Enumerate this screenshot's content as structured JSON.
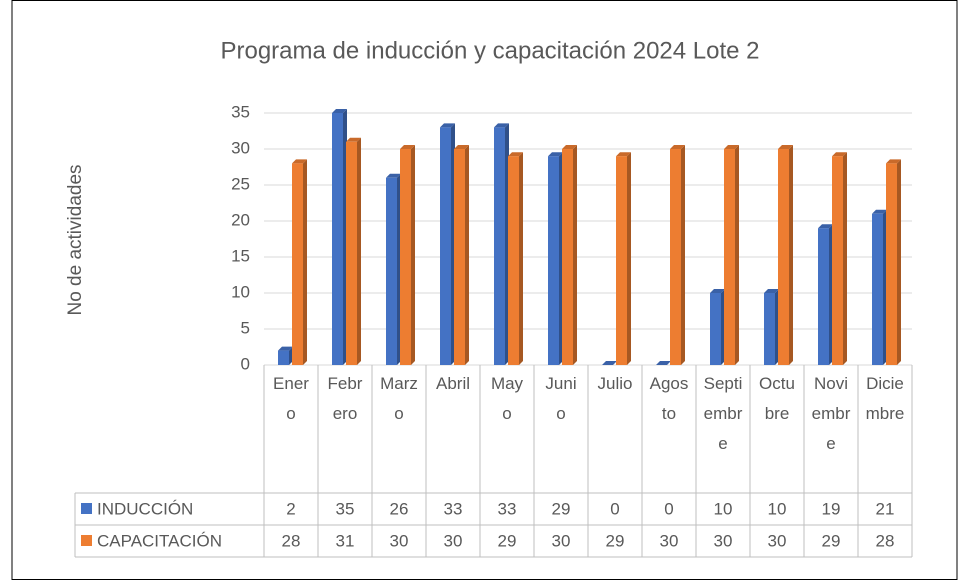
{
  "chart_data": {
    "type": "bar",
    "title": "Programa de inducción y capacitación 2024 Lote 2",
    "y_label": "No de actividades",
    "categories": [
      "Enero",
      "Febrero",
      "Marzo",
      "Abril",
      "Mayo",
      "Junio",
      "Julio",
      "Agosto",
      "Septiembre",
      "Octubre",
      "Noviembre",
      "Diciembre"
    ],
    "series": [
      {
        "name": "INDUCCIÓN",
        "color": "#4472c4",
        "values": [
          2,
          35,
          26,
          33,
          33,
          29,
          0,
          0,
          10,
          10,
          19,
          21
        ]
      },
      {
        "name": "CAPACITACIÓN",
        "color": "#ed7d31",
        "values": [
          28,
          31,
          30,
          30,
          29,
          30,
          29,
          30,
          30,
          30,
          29,
          28
        ]
      }
    ],
    "ylim": [
      0,
      35
    ],
    "yticks": [
      0,
      5,
      10,
      15,
      20,
      25,
      30,
      35
    ],
    "grid": true
  }
}
